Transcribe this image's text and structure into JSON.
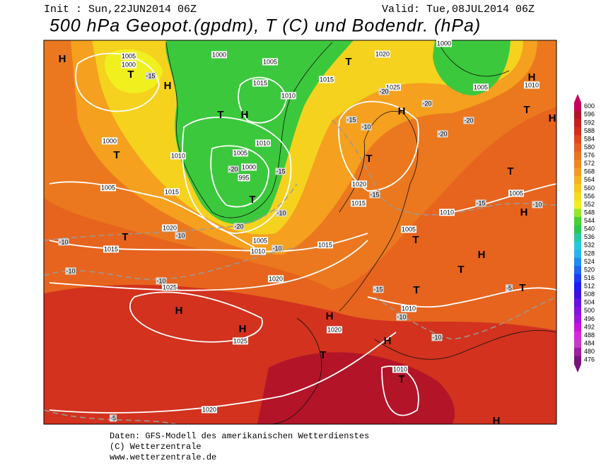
{
  "header": {
    "init": "Init : Sun,22JUN2014 06Z",
    "valid": "Valid: Tue,08JUL2014 06Z",
    "title": "500 hPa Geopot.(gpdm), T (C) und Bodendr. (hPa)"
  },
  "map": {
    "pressure_labels": [
      "1005",
      "1000",
      "1000",
      "1005",
      "1015",
      "1010",
      "1010",
      "1005",
      "1000",
      "995",
      "1010",
      "1000",
      "1005",
      "1015",
      "1020",
      "1015",
      "1005",
      "1010",
      "1015",
      "1020",
      "1025",
      "1025",
      "1020",
      "1010",
      "1005",
      "1015",
      "1020",
      "1010",
      "1005",
      "1010",
      "1005",
      "1000",
      "1020",
      "1025",
      "1015",
      "1010",
      "1020"
    ],
    "temperature_labels": [
      "-15",
      "-15",
      "-10",
      "-20",
      "-20",
      "-20",
      "-20",
      "-15",
      "-20",
      "-10",
      "-20",
      "-10",
      "-10",
      "-10",
      "-10",
      "-10",
      "-15",
      "-15",
      "-10",
      "-15",
      "-5",
      "-10",
      "-10",
      "-5"
    ],
    "centers": [
      "H",
      "T",
      "H",
      "T",
      "H",
      "T",
      "T",
      "T",
      "H",
      "H",
      "H",
      "T",
      "H",
      "T",
      "T",
      "H",
      "T",
      "H",
      "T",
      "T",
      "H",
      "T",
      "H",
      "T",
      "T",
      "T",
      "H",
      "H"
    ]
  },
  "legend": {
    "items": [
      {
        "label": "600",
        "color": "#c8005a"
      },
      {
        "label": "596",
        "color": "#b41428"
      },
      {
        "label": "592",
        "color": "#c81e1e"
      },
      {
        "label": "588",
        "color": "#d72d1e"
      },
      {
        "label": "584",
        "color": "#e1461e"
      },
      {
        "label": "580",
        "color": "#e65f1e"
      },
      {
        "label": "576",
        "color": "#eb731e"
      },
      {
        "label": "572",
        "color": "#f0871e"
      },
      {
        "label": "568",
        "color": "#f59b1e"
      },
      {
        "label": "564",
        "color": "#f5b41e"
      },
      {
        "label": "560",
        "color": "#f5c81e"
      },
      {
        "label": "556",
        "color": "#f5dc1e"
      },
      {
        "label": "552",
        "color": "#f0f01e"
      },
      {
        "label": "548",
        "color": "#96e628"
      },
      {
        "label": "544",
        "color": "#46d232"
      },
      {
        "label": "540",
        "color": "#28c850"
      },
      {
        "label": "536",
        "color": "#28c8a0"
      },
      {
        "label": "532",
        "color": "#28c8dc"
      },
      {
        "label": "528",
        "color": "#28b4f0"
      },
      {
        "label": "524",
        "color": "#1e8cf0"
      },
      {
        "label": "520",
        "color": "#1e64f0"
      },
      {
        "label": "516",
        "color": "#1e3cf0"
      },
      {
        "label": "512",
        "color": "#1e1ef0"
      },
      {
        "label": "508",
        "color": "#3c14dc"
      },
      {
        "label": "504",
        "color": "#6414dc"
      },
      {
        "label": "500",
        "color": "#8214dc"
      },
      {
        "label": "496",
        "color": "#a014dc"
      },
      {
        "label": "492",
        "color": "#c814dc"
      },
      {
        "label": "488",
        "color": "#dc28dc"
      },
      {
        "label": "484",
        "color": "#c83cc8"
      },
      {
        "label": "480",
        "color": "#a01ea0"
      },
      {
        "label": "476",
        "color": "#78147a"
      }
    ]
  },
  "footer": {
    "lines": [
      "Daten: GFS-Modell des amerikanischen Wetterdienstes",
      "(C) Wetterzentrale",
      "www.wetterzentrale.de"
    ]
  }
}
